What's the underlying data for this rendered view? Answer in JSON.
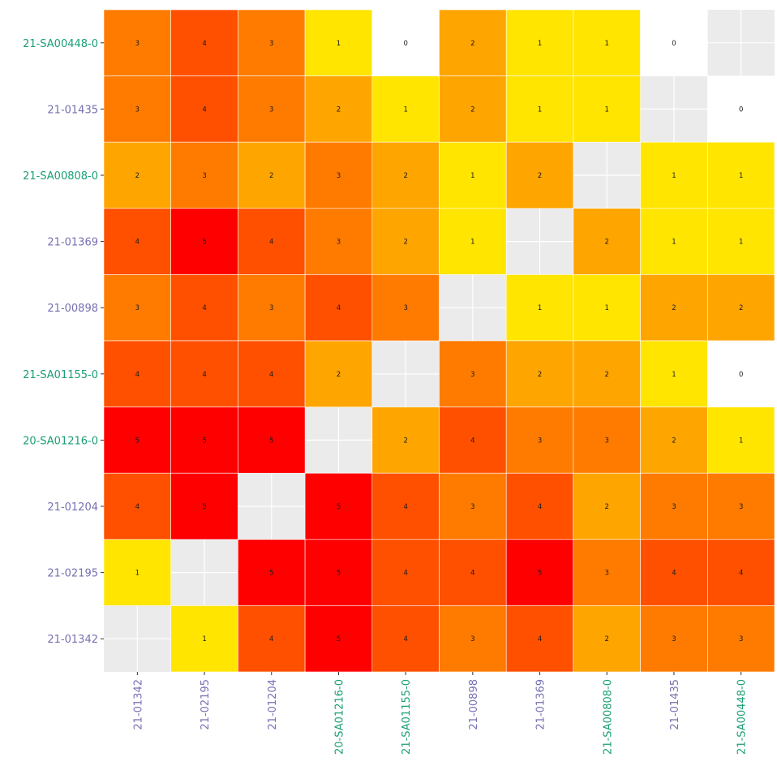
{
  "chart_data": {
    "type": "heatmap",
    "x_categories": [
      "21-01342",
      "21-02195",
      "21-01204",
      "20-SA01216-0",
      "21-SA01155-0",
      "21-00898",
      "21-01369",
      "21-SA00808-0",
      "21-01435",
      "21-SA00448-0"
    ],
    "y_categories": [
      "21-SA00448-0",
      "21-01435",
      "21-SA00808-0",
      "21-01369",
      "21-00898",
      "21-SA01155-0",
      "20-SA01216-0",
      "21-01204",
      "21-02195",
      "21-01342"
    ],
    "values": [
      [
        3,
        4,
        3,
        1,
        0,
        2,
        1,
        1,
        0,
        null
      ],
      [
        3,
        4,
        3,
        2,
        1,
        2,
        1,
        1,
        null,
        0
      ],
      [
        2,
        3,
        2,
        3,
        2,
        1,
        2,
        null,
        1,
        1
      ],
      [
        4,
        5,
        4,
        3,
        2,
        1,
        null,
        2,
        1,
        1
      ],
      [
        3,
        4,
        3,
        4,
        3,
        null,
        1,
        1,
        2,
        2
      ],
      [
        4,
        4,
        4,
        2,
        null,
        3,
        2,
        2,
        1,
        0
      ],
      [
        5,
        5,
        5,
        null,
        2,
        4,
        3,
        3,
        2,
        1
      ],
      [
        4,
        5,
        null,
        5,
        4,
        3,
        4,
        2,
        3,
        3
      ],
      [
        1,
        null,
        5,
        5,
        4,
        4,
        5,
        3,
        4,
        4
      ],
      [
        null,
        1,
        4,
        5,
        4,
        3,
        4,
        2,
        3,
        3
      ]
    ],
    "color_scale": {
      "0": "#ffffff",
      "1": "#ffe500",
      "2": "#ffa500",
      "3": "#ff7b00",
      "4": "#ff5000",
      "5": "#ff0000"
    },
    "label_colors": {
      "SA": "#1a9e77",
      "other": "#7570b3"
    },
    "panel_background": "#ebebeb",
    "missing_background": "#e6e6e6",
    "gridline_color": "#ffffff"
  }
}
